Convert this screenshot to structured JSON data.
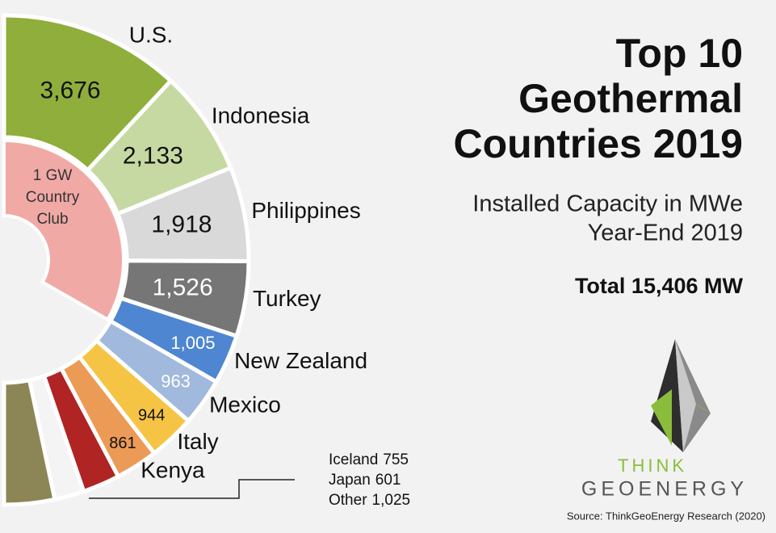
{
  "chart_data": {
    "type": "donut",
    "title": [
      "Top 10",
      "Geothermal",
      "Countries 2019"
    ],
    "subtitle": [
      "Installed Capacity in MWe",
      "Year-End 2019"
    ],
    "total_label": "Total 15,406 MW",
    "source": "Source: ThinkGeoEnergy Research (2020)",
    "categories": [
      "U.S.",
      "Indonesia",
      "Philippines",
      "Turkey",
      "New Zealand",
      "Mexico",
      "Italy",
      "Kenya",
      "Iceland",
      "Japan",
      "Other"
    ],
    "values": [
      3676,
      2133,
      1918,
      1526,
      1005,
      963,
      944,
      861,
      755,
      601,
      1025
    ],
    "value_labels": [
      "3,676",
      "2,133",
      "1,918",
      "1,526",
      "1,005",
      "963",
      "944",
      "861",
      "755",
      "601",
      "1,025"
    ],
    "colors": [
      "#8fae3b",
      "#c6d9a2",
      "#d9d9d9",
      "#767676",
      "#4f86d1",
      "#a0b9dc",
      "#f6c445",
      "#ec9b57",
      "#b02424",
      "#f4f4f4",
      "#8c8656"
    ],
    "label_colors": [
      "#111111",
      "#111111",
      "#111111",
      "#ffffff",
      "#ffffff",
      "#ffffff",
      "#111111",
      "#111111",
      "#111111",
      "#111111",
      "#111111"
    ],
    "start_angle": 0,
    "sweep": 180,
    "inner_ring": {
      "label": [
        "1 GW",
        "Country",
        "Club"
      ],
      "color": "#f1a9a6",
      "min_value": 1000
    },
    "logo": {
      "line1": "THINK",
      "line2": "GEOENERGY"
    }
  }
}
